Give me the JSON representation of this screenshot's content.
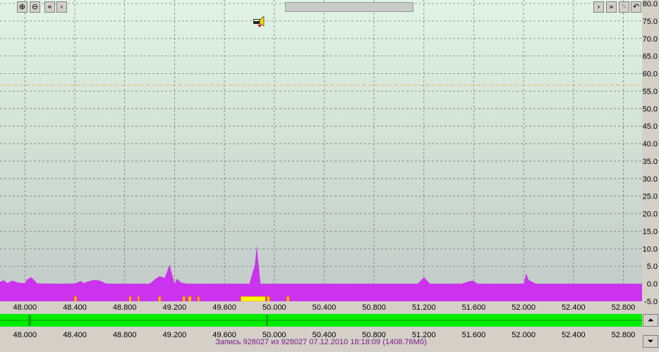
{
  "toolbar": {
    "zoom_in": "⊕",
    "zoom_out": "⊖",
    "first": "«",
    "prev": "‹",
    "next": "›",
    "last": "»",
    "icon_names": [
      "zoom-in-icon",
      "zoom-out-icon",
      "rewind-icon",
      "step-back-icon",
      "step-forward-icon",
      "fast-forward-icon",
      "disabled-icon",
      "undo-icon"
    ]
  },
  "status": {
    "record_label": "Запись",
    "record_num": "928027",
    "of_label": "из",
    "total": "928027",
    "datetime": "07.12.2010 18:18:09",
    "size": "(1408.76Мб)"
  },
  "colors": {
    "plot_bg_top": "#e1f4e4",
    "plot_bg_bottom": "#c2cac8",
    "area": "#cc33ee",
    "bar_yellow": "#ffff00",
    "bar_red": "#ff4400",
    "overview_green": "#00ee00",
    "threshold": "#f0b060"
  },
  "chart_data": {
    "type": "area",
    "xlim": [
      47.8,
      52.95
    ],
    "ylim": [
      -5,
      80
    ],
    "yticks": [
      "80.0",
      "75.0",
      "70.0",
      "65.0",
      "60.0",
      "55.0",
      "50.0",
      "45.0",
      "40.0",
      "35.0",
      "30.0",
      "25.0",
      "20.0",
      "15.0",
      "10.0",
      "5.0",
      "0.0",
      "-5.0"
    ],
    "ytick_values": [
      80,
      75,
      70,
      65,
      60,
      55,
      50,
      45,
      40,
      35,
      30,
      25,
      20,
      15,
      10,
      5,
      0,
      -5
    ],
    "xticks": [
      "48.000",
      "48.400",
      "48.800",
      "49.200",
      "49.600",
      "50.000",
      "50.400",
      "50.800",
      "51.200",
      "51.600",
      "52.000",
      "52.400",
      "52.800"
    ],
    "xtick_values": [
      48.0,
      48.4,
      48.8,
      49.2,
      49.6,
      50.0,
      50.4,
      50.8,
      51.2,
      51.6,
      52.0,
      52.4,
      52.8
    ],
    "threshold": 56.7,
    "grid": true,
    "series": [
      {
        "x": [
          47.8,
          47.83,
          47.86,
          47.9,
          47.95,
          48.0,
          48.02,
          48.05,
          48.1,
          48.3,
          48.4,
          48.45,
          48.47,
          48.5,
          48.55,
          48.6,
          48.65,
          48.7,
          49.0,
          49.05,
          49.08,
          49.12,
          49.14,
          49.16,
          49.2,
          49.22,
          49.25,
          49.3,
          49.7,
          49.8,
          49.845,
          49.86,
          49.875,
          49.89,
          49.95,
          50.9,
          51.15,
          51.2,
          51.25,
          51.5,
          51.57,
          51.6,
          51.63,
          52.0,
          52.02,
          52.04,
          52.1,
          52.95
        ],
        "y": [
          0.6,
          1.0,
          0.2,
          0.9,
          0.3,
          0.2,
          1.3,
          1.9,
          0.1,
          0.0,
          0.1,
          0.8,
          0.2,
          0.6,
          1.1,
          0.9,
          0.1,
          0.0,
          0.0,
          1.5,
          2.2,
          1.7,
          3.5,
          5.5,
          0.0,
          1.5,
          0.4,
          0.0,
          0.0,
          0.0,
          5.5,
          11.0,
          5.0,
          0.0,
          0.0,
          0.0,
          0.0,
          1.9,
          0.0,
          0.0,
          0.8,
          0.8,
          0.0,
          0.0,
          3.0,
          1.1,
          0.0,
          0.0
        ]
      }
    ],
    "markers": [
      {
        "start": 48.395,
        "end": 48.415,
        "color": "orange"
      },
      {
        "start": 48.835,
        "end": 48.852,
        "color": "orange"
      },
      {
        "start": 48.905,
        "end": 48.918,
        "color": "orange"
      },
      {
        "start": 49.07,
        "end": 49.09,
        "color": "orange"
      },
      {
        "start": 49.265,
        "end": 49.285,
        "color": "orange"
      },
      {
        "start": 49.31,
        "end": 49.335,
        "color": "orange"
      },
      {
        "start": 49.385,
        "end": 49.4,
        "color": "orange"
      },
      {
        "start": 49.73,
        "end": 49.93,
        "color": "yellow"
      },
      {
        "start": 49.94,
        "end": 49.965,
        "color": "orange"
      },
      {
        "start": 50.1,
        "end": 50.12,
        "color": "orange"
      }
    ]
  }
}
